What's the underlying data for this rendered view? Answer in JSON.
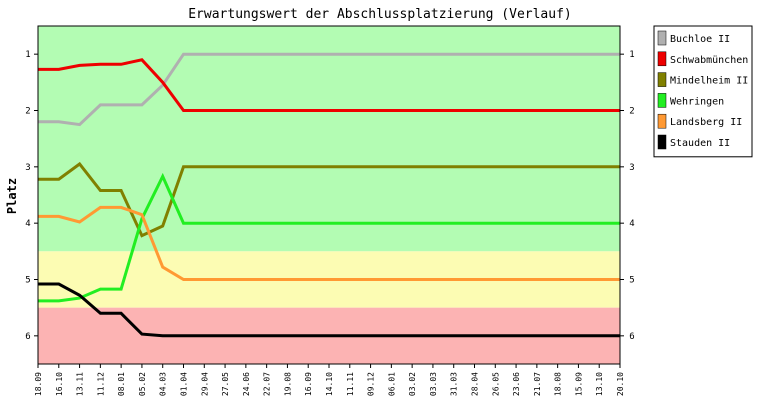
{
  "chart_data": {
    "type": "line",
    "title": "Erwartungswert der Abschlussplatzierung (Verlauf)",
    "xlabel": "",
    "ylabel": "Platz",
    "ylim": [
      0.5,
      6.5
    ],
    "y_inverted": true,
    "y_ticks": [
      "1",
      "2",
      "3",
      "4",
      "5",
      "6"
    ],
    "legend_position": "right",
    "bands": [
      {
        "from": 0.5,
        "to": 4.5,
        "color": "#b3fcb3"
      },
      {
        "from": 4.5,
        "to": 5.5,
        "color": "#fcfcb3"
      },
      {
        "from": 5.5,
        "to": 6.5,
        "color": "#fcb3b3"
      }
    ],
    "categories": [
      "18.09",
      "16.10",
      "13.11",
      "11.12",
      "08.01",
      "05.02",
      "04.03",
      "01.04",
      "29.04",
      "27.05",
      "24.06",
      "22.07",
      "19.08",
      "16.09",
      "14.10",
      "11.11",
      "09.12",
      "06.01",
      "03.02",
      "03.03",
      "31.03",
      "28.04",
      "26.05",
      "23.06",
      "21.07",
      "18.08",
      "15.09",
      "13.10",
      "20.10"
    ],
    "series": [
      {
        "name": "Buchloe II",
        "color": "#b0b0b0",
        "values": [
          2.2,
          2.2,
          2.25,
          1.9,
          1.9,
          1.9,
          1.55,
          1,
          1,
          1,
          1,
          1,
          1,
          1,
          1,
          1,
          1,
          1,
          1,
          1,
          1,
          1,
          1,
          1,
          1,
          1,
          1,
          1,
          1
        ]
      },
      {
        "name": "Schwabmünchen",
        "color": "#ee0000",
        "values": [
          1.27,
          1.27,
          1.2,
          1.18,
          1.18,
          1.1,
          1.5,
          2,
          2,
          2,
          2,
          2,
          2,
          2,
          2,
          2,
          2,
          2,
          2,
          2,
          2,
          2,
          2,
          2,
          2,
          2,
          2,
          2,
          2
        ]
      },
      {
        "name": "Mindelheim II",
        "color": "#808000",
        "values": [
          3.22,
          3.22,
          2.95,
          3.42,
          3.42,
          4.22,
          4.05,
          3,
          3,
          3,
          3,
          3,
          3,
          3,
          3,
          3,
          3,
          3,
          3,
          3,
          3,
          3,
          3,
          3,
          3,
          3,
          3,
          3,
          3
        ]
      },
      {
        "name": "Wehringen",
        "color": "#22ee22",
        "values": [
          5.38,
          5.38,
          5.33,
          5.17,
          5.17,
          3.92,
          3.17,
          4,
          4,
          4,
          4,
          4,
          4,
          4,
          4,
          4,
          4,
          4,
          4,
          4,
          4,
          4,
          4,
          4,
          4,
          4,
          4,
          4,
          4
        ]
      },
      {
        "name": "Landsberg II",
        "color": "#ff9933",
        "values": [
          3.88,
          3.88,
          3.98,
          3.72,
          3.72,
          3.85,
          4.78,
          5,
          5,
          5,
          5,
          5,
          5,
          5,
          5,
          5,
          5,
          5,
          5,
          5,
          5,
          5,
          5,
          5,
          5,
          5,
          5,
          5,
          5
        ]
      },
      {
        "name": "Stauden II",
        "color": "#000000",
        "values": [
          5.08,
          5.08,
          5.28,
          5.6,
          5.6,
          5.97,
          6,
          6,
          6,
          6,
          6,
          6,
          6,
          6,
          6,
          6,
          6,
          6,
          6,
          6,
          6,
          6,
          6,
          6,
          6,
          6,
          6,
          6,
          6
        ]
      }
    ]
  }
}
